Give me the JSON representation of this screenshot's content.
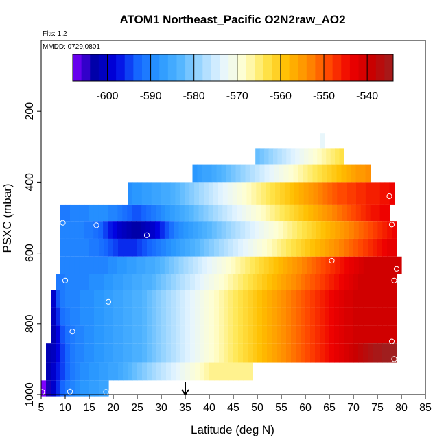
{
  "chart_data": {
    "type": "heatmap",
    "title": "ATOM1 Northeast_Pacific O2N2raw_AO2",
    "subtitle_flights": "Flts: 1,2",
    "subtitle_dates": "MMDD: 0729,0801",
    "xlabel": "Latitude (deg N)",
    "ylabel": "PSXC (mbar)",
    "xlim": [
      5,
      85
    ],
    "ylim": [
      1000,
      0
    ],
    "x_ticks": [
      5,
      10,
      15,
      20,
      25,
      30,
      35,
      40,
      45,
      50,
      55,
      60,
      65,
      70,
      75,
      80,
      85
    ],
    "y_ticks": [
      200,
      400,
      600,
      800,
      1000
    ],
    "colorbar": {
      "range": [
        -608,
        -534
      ],
      "tick_values": [
        -600,
        -590,
        -580,
        -570,
        -560,
        -550,
        -540
      ],
      "tick_labels": [
        "-600",
        "-590",
        "-580",
        "-570",
        "-560",
        "-550",
        "-540"
      ],
      "colors": [
        "#8000ff",
        "#0000a8",
        "#0000e0",
        "#1464ff",
        "#2896ff",
        "#50b4ff",
        "#a0d8ff",
        "#e6f5ff",
        "#ffffd0",
        "#ffe650",
        "#ffbe00",
        "#ff8c00",
        "#ff4600",
        "#ee0000",
        "#c80000",
        "#a01e1e"
      ]
    },
    "arrow_latitude": 35,
    "layers": [
      {
        "pmin": 262,
        "pmax": 305,
        "lat_start": 63.1,
        "lat_end": 64.0,
        "values": [
          -573
        ]
      },
      {
        "pmin": 305,
        "pmax": 350,
        "lat_start": 49.6,
        "lat_end": 68.0,
        "values": [
          -582,
          -581,
          -580,
          -579,
          -578,
          -577,
          -576,
          -575,
          -574,
          -573,
          -572,
          -571,
          -570,
          -569,
          -568,
          -567,
          -566,
          -565,
          -564,
          -563
        ]
      },
      {
        "pmin": 350,
        "pmax": 400,
        "lat_start": 36.5,
        "lat_end": 73.5,
        "values": [
          -588,
          -587,
          -586,
          -586,
          -585,
          -584,
          -583,
          -582,
          -581,
          -580,
          -579,
          -578,
          -577,
          -576,
          -575,
          -574,
          -573,
          -572,
          -571,
          -570,
          -569,
          -568,
          -567,
          -566,
          -565,
          -564,
          -563,
          -562,
          -561,
          -560,
          -559,
          -558,
          -557,
          -556,
          -555,
          -555,
          -554
        ]
      },
      {
        "pmin": 400,
        "pmax": 465,
        "lat_start": 23.0,
        "lat_end": 78.5,
        "values": [
          -589,
          -588,
          -588,
          -587,
          -587,
          -586,
          -586,
          -585,
          -585,
          -584,
          -583,
          -582,
          -581,
          -580,
          -579,
          -578,
          -577,
          -576,
          -575,
          -574,
          -573,
          -572,
          -571,
          -570,
          -569,
          -568,
          -567,
          -566,
          -565,
          -564,
          -563,
          -562,
          -561,
          -560,
          -559,
          -558,
          -557,
          -556,
          -555,
          -554,
          -553,
          -552,
          -551,
          -550,
          -549,
          -549,
          -548,
          -548,
          -547,
          -547,
          -546,
          -546,
          -546,
          -545,
          -545,
          -544
        ]
      },
      {
        "pmin": 465,
        "pmax": 510,
        "lat_start": 9.0,
        "lat_end": 77.5,
        "values": [
          -591,
          -591,
          -590,
          -590,
          -590,
          -590,
          -589,
          -589,
          -589,
          -589,
          -590,
          -590,
          -591,
          -592,
          -593,
          -594,
          -594,
          -593,
          -592,
          -591,
          -590,
          -589,
          -588,
          -587,
          -586,
          -585,
          -584,
          -583,
          -582,
          -581,
          -580,
          -579,
          -578,
          -577,
          -576,
          -575,
          -574,
          -573,
          -572,
          -571,
          -570,
          -569,
          -568,
          -567,
          -566,
          -565,
          -564,
          -563,
          -562,
          -561,
          -560,
          -559,
          -558,
          -557,
          -556,
          -555,
          -554,
          -553,
          -552,
          -551,
          -550,
          -549,
          -548,
          -547,
          -546,
          -545,
          -545,
          -544,
          -544
        ]
      },
      {
        "pmin": 510,
        "pmax": 560,
        "lat_start": 9.0,
        "lat_end": 79.0,
        "values": [
          -590,
          -590,
          -590,
          -590,
          -590,
          -591,
          -591,
          -592,
          -593,
          -595,
          -597,
          -598,
          -600,
          -601,
          -602,
          -603,
          -603,
          -602,
          -601,
          -600,
          -598,
          -596,
          -594,
          -592,
          -590,
          -589,
          -588,
          -587,
          -586,
          -585,
          -584,
          -583,
          -582,
          -581,
          -580,
          -579,
          -578,
          -577,
          -576,
          -575,
          -574,
          -573,
          -572,
          -571,
          -570,
          -569,
          -568,
          -567,
          -566,
          -565,
          -564,
          -563,
          -562,
          -561,
          -560,
          -559,
          -558,
          -557,
          -556,
          -555,
          -554,
          -553,
          -552,
          -551,
          -550,
          -549,
          -548,
          -547,
          -546,
          -545,
          -544
        ]
      },
      {
        "pmin": 560,
        "pmax": 610,
        "lat_start": 9.0,
        "lat_end": 79.0,
        "values": [
          -590,
          -590,
          -590,
          -590,
          -590,
          -590,
          -591,
          -591,
          -592,
          -593,
          -594,
          -595,
          -596,
          -596,
          -596,
          -596,
          -595,
          -594,
          -593,
          -592,
          -591,
          -590,
          -589,
          -588,
          -587,
          -586,
          -585,
          -584,
          -583,
          -582,
          -581,
          -580,
          -579,
          -578,
          -577,
          -576,
          -575,
          -574,
          -573,
          -572,
          -571,
          -570,
          -569,
          -568,
          -567,
          -566,
          -565,
          -564,
          -563,
          -562,
          -561,
          -560,
          -559,
          -558,
          -557,
          -556,
          -555,
          -554,
          -553,
          -552,
          -551,
          -550,
          -549,
          -548,
          -547,
          -546,
          -545,
          -544,
          -543,
          -543
        ]
      },
      {
        "pmin": 610,
        "pmax": 660,
        "lat_start": 9.0,
        "lat_end": 80.0,
        "values": [
          -590,
          -590,
          -590,
          -590,
          -590,
          -590,
          -590,
          -590,
          -590,
          -590,
          -589,
          -589,
          -588,
          -588,
          -587,
          -587,
          -586,
          -586,
          -585,
          -585,
          -584,
          -583,
          -582,
          -581,
          -580,
          -579,
          -578,
          -577,
          -576,
          -575,
          -574,
          -573,
          -572,
          -571,
          -570,
          -569,
          -568,
          -567,
          -566,
          -565,
          -564,
          -563,
          -562,
          -561,
          -560,
          -559,
          -558,
          -557,
          -556,
          -555,
          -554,
          -553,
          -552,
          -551,
          -550,
          -549,
          -548,
          -547,
          -546,
          -545,
          -544,
          -543,
          -542,
          -541,
          -540,
          -540,
          -540,
          -540,
          -540,
          -540,
          -540,
          -540
        ]
      },
      {
        "pmin": 660,
        "pmax": 705,
        "lat_start": 8.0,
        "lat_end": 79.0,
        "values": [
          -591,
          -591,
          -590,
          -590,
          -590,
          -590,
          -590,
          -589,
          -589,
          -589,
          -588,
          -588,
          -587,
          -587,
          -586,
          -586,
          -585,
          -585,
          -584,
          -584,
          -583,
          -582,
          -581,
          -580,
          -579,
          -578,
          -577,
          -576,
          -575,
          -574,
          -573,
          -572,
          -571,
          -570,
          -569,
          -568,
          -567,
          -566,
          -565,
          -564,
          -563,
          -562,
          -561,
          -560,
          -559,
          -558,
          -557,
          -556,
          -555,
          -554,
          -553,
          -552,
          -551,
          -550,
          -549,
          -548,
          -547,
          -546,
          -545,
          -544,
          -543,
          -542,
          -541,
          -540,
          -540,
          -540,
          -540,
          -540,
          -540,
          -540,
          -540
        ]
      },
      {
        "pmin": 705,
        "pmax": 755,
        "lat_start": 7.0,
        "lat_end": 79.0,
        "values": [
          -600,
          -594,
          -591,
          -590,
          -590,
          -590,
          -589,
          -589,
          -589,
          -588,
          -588,
          -587,
          -587,
          -586,
          -586,
          -585,
          -585,
          -584,
          -584,
          -583,
          -582,
          -581,
          -580,
          -579,
          -578,
          -577,
          -576,
          -575,
          -574,
          -573,
          -572,
          -571,
          -570,
          -569,
          -568,
          -567,
          -566,
          -565,
          -564,
          -563,
          -562,
          -561,
          -560,
          -559,
          -558,
          -557,
          -556,
          -555,
          -554,
          -553,
          -552,
          -551,
          -550,
          -549,
          -548,
          -547,
          -546,
          -545,
          -544,
          -543,
          -542,
          -541,
          -541,
          -540,
          -540,
          -540,
          -540,
          -540,
          -540,
          -540,
          -540,
          -540
        ]
      },
      {
        "pmin": 755,
        "pmax": 805,
        "lat_start": 7.0,
        "lat_end": 79.0,
        "values": [
          -601,
          -596,
          -592,
          -591,
          -590,
          -590,
          -589,
          -589,
          -589,
          -588,
          -588,
          -587,
          -587,
          -586,
          -586,
          -585,
          -585,
          -584,
          -584,
          -583,
          -582,
          -581,
          -580,
          -579,
          -578,
          -577,
          -576,
          -575,
          -574,
          -573,
          -572,
          -571,
          -570,
          -569,
          -568,
          -567,
          -566,
          -565,
          -564,
          -563,
          -562,
          -561,
          -560,
          -559,
          -558,
          -557,
          -556,
          -555,
          -554,
          -553,
          -552,
          -551,
          -550,
          -549,
          -548,
          -547,
          -546,
          -545,
          -544,
          -543,
          -542,
          -541,
          -541,
          -540,
          -540,
          -540,
          -540,
          -540,
          -540,
          -540,
          -540,
          -540
        ]
      },
      {
        "pmin": 805,
        "pmax": 855,
        "lat_start": 7.0,
        "lat_end": 79.0,
        "values": [
          -602,
          -598,
          -594,
          -592,
          -591,
          -590,
          -590,
          -589,
          -589,
          -588,
          -588,
          -587,
          -587,
          -586,
          -586,
          -585,
          -585,
          -584,
          -584,
          -583,
          -582,
          -581,
          -580,
          -579,
          -578,
          -577,
          -576,
          -575,
          -574,
          -573,
          -572,
          -571,
          -570,
          -569,
          -568,
          -567,
          -566,
          -565,
          -564,
          -563,
          -562,
          -561,
          -560,
          -559,
          -558,
          -557,
          -556,
          -555,
          -554,
          -553,
          -552,
          -551,
          -550,
          -549,
          -548,
          -547,
          -546,
          -545,
          -544,
          -543,
          -542,
          -541,
          -541,
          -540,
          -540,
          -540,
          -540,
          -540,
          -540,
          -540,
          -540,
          -540
        ]
      },
      {
        "pmin": 855,
        "pmax": 910,
        "lat_start": 6.0,
        "lat_end": 79.0,
        "values": [
          -602,
          -601,
          -598,
          -595,
          -593,
          -591,
          -590,
          -590,
          -589,
          -589,
          -588,
          -588,
          -587,
          -587,
          -586,
          -586,
          -585,
          -585,
          -584,
          -584,
          -583,
          -582,
          -581,
          -580,
          -579,
          -578,
          -577,
          -576,
          -575,
          -574,
          -573,
          -572,
          -571,
          -570,
          -569,
          -568,
          -567,
          -566,
          -565,
          -564,
          -563,
          -562,
          -561,
          -560,
          -559,
          -558,
          -557,
          -556,
          -555,
          -554,
          -553,
          -552,
          -551,
          -550,
          -549,
          -548,
          -547,
          -546,
          -545,
          -544,
          -543,
          -542,
          -541,
          -540,
          -539,
          -538,
          -537,
          -536,
          -535,
          -535,
          -534,
          -534,
          -534
        ]
      },
      {
        "pmin": 910,
        "pmax": 960,
        "lat_start": 6.0,
        "lat_end": 49.0,
        "values": [
          -602,
          -600,
          -597,
          -595,
          -593,
          -591,
          -590,
          -589,
          -589,
          -588,
          -588,
          -587,
          -587,
          -586,
          -586,
          -585,
          -584,
          -583,
          -582,
          -581,
          -580,
          -579,
          -578,
          -577,
          -576,
          -575,
          -574,
          -573,
          -572,
          -571,
          -570,
          -569,
          -568,
          -567,
          -566,
          -566,
          -566,
          -566,
          -566,
          -566,
          -566,
          -566,
          -566
        ]
      },
      {
        "pmin": 960,
        "pmax": 1005,
        "lat_start": 5.0,
        "lat_end": 19.0,
        "values": [
          -608,
          -604,
          -600,
          -596,
          -593,
          -591,
          -590,
          -589,
          -588,
          -588,
          -587,
          -587,
          -586,
          -586
        ]
      }
    ],
    "markers": [
      {
        "lat": 9.5,
        "p": 515
      },
      {
        "lat": 16.5,
        "p": 522
      },
      {
        "lat": 27.0,
        "p": 550
      },
      {
        "lat": 10.0,
        "p": 678
      },
      {
        "lat": 19.0,
        "p": 738
      },
      {
        "lat": 11.5,
        "p": 822
      },
      {
        "lat": 5.2,
        "p": 993
      },
      {
        "lat": 11.0,
        "p": 992
      },
      {
        "lat": 18.5,
        "p": 993
      },
      {
        "lat": 77.5,
        "p": 440
      },
      {
        "lat": 78.0,
        "p": 520
      },
      {
        "lat": 65.5,
        "p": 622
      },
      {
        "lat": 79.0,
        "p": 645
      },
      {
        "lat": 78.5,
        "p": 678
      },
      {
        "lat": 78.0,
        "p": 850
      },
      {
        "lat": 78.5,
        "p": 900
      }
    ]
  }
}
